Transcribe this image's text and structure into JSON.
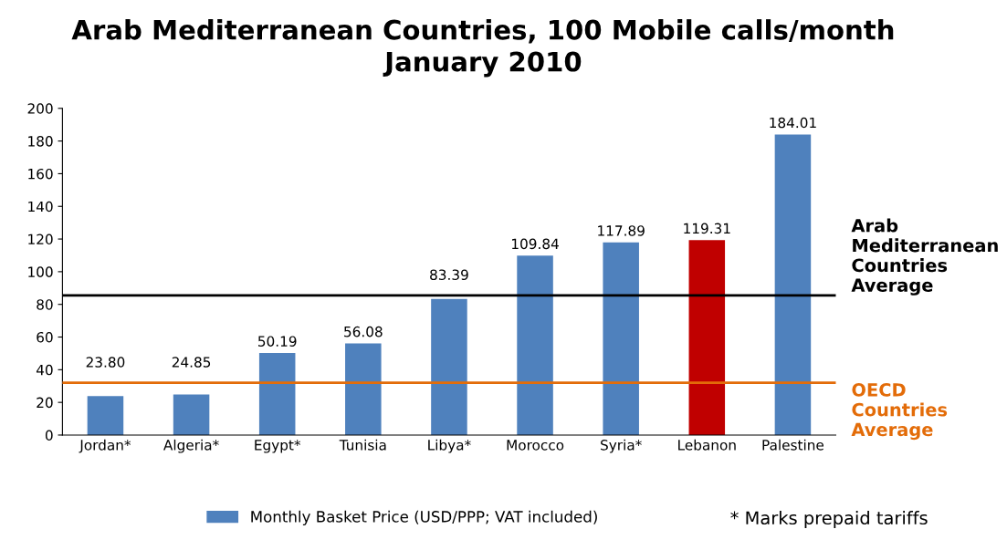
{
  "chart_data": {
    "type": "bar",
    "title": "Arab Mediterranean Countries, 100 Mobile calls/month\nJanuary 2010",
    "categories": [
      "Jordan*",
      "Algeria*",
      "Egypt*",
      "Tunisia",
      "Libya*",
      "Morocco",
      "Syria*",
      "Lebanon",
      "Palestine"
    ],
    "series": [
      {
        "name": "Monthly Basket Price (USD/PPP; VAT included)",
        "color": "#4f81bd",
        "colors": [
          "#4f81bd",
          "#4f81bd",
          "#4f81bd",
          "#4f81bd",
          "#4f81bd",
          "#4f81bd",
          "#4f81bd",
          "#c00000",
          "#4f81bd"
        ],
        "values": [
          23.8,
          24.85,
          50.19,
          56.08,
          83.39,
          109.84,
          117.89,
          119.31,
          184.01
        ],
        "value_labels": [
          "23.80",
          "24.85",
          "50.19",
          "56.08",
          "83.39",
          "109.84",
          "117.89",
          "119.31",
          "184.01"
        ]
      }
    ],
    "ylim": [
      0,
      200
    ],
    "yticks": [
      0,
      20,
      40,
      60,
      80,
      100,
      120,
      140,
      160,
      180,
      200
    ],
    "ref_lines": [
      {
        "axis": "y",
        "value": 85.5,
        "label": "Arab\nMediterranean\nCountries\nAverage",
        "color": "#000000"
      },
      {
        "axis": "y",
        "value": 32,
        "label": "OECD\nCountries\nAverage",
        "color": "#e36c09"
      }
    ],
    "grid": false,
    "legend": "bottom",
    "annotations": [
      "* Marks prepaid tariffs"
    ]
  }
}
